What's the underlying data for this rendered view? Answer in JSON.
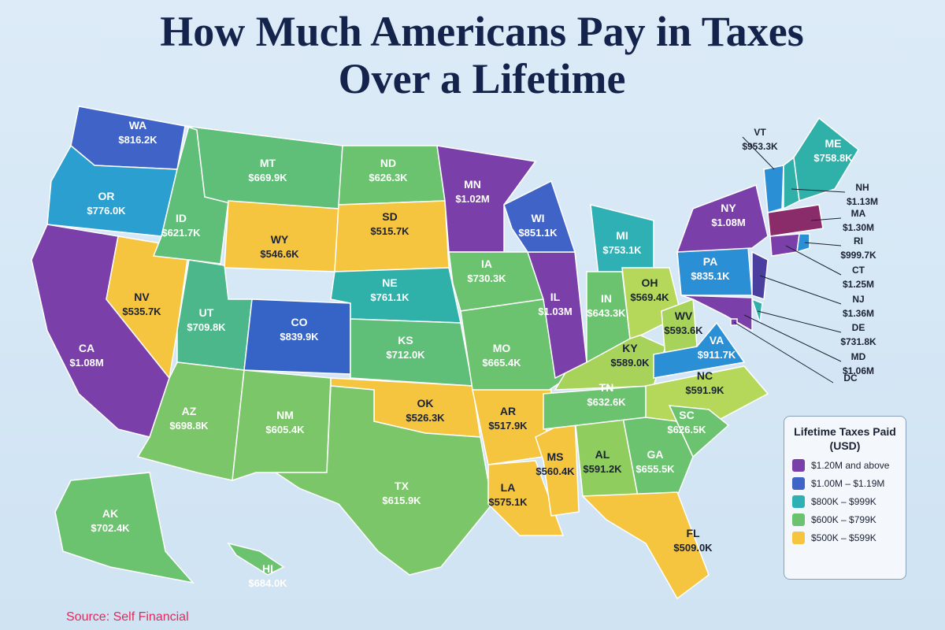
{
  "title_lines": [
    "How Much Americans Pay in Taxes",
    "Over a Lifetime"
  ],
  "states": [
    {
      "abbr": "WA",
      "value": "$816.2K",
      "color": "#3f63c7"
    },
    {
      "abbr": "OR",
      "value": "$776.0K",
      "color": "#2b9fd0"
    },
    {
      "abbr": "CA",
      "value": "$1.08M",
      "color": "#7a3fa8"
    },
    {
      "abbr": "NV",
      "value": "$535.7K",
      "color": "#f5c53f"
    },
    {
      "abbr": "ID",
      "value": "$621.7K",
      "color": "#5fbf78"
    },
    {
      "abbr": "MT",
      "value": "$669.9K",
      "color": "#5fbf78"
    },
    {
      "abbr": "WY",
      "value": "$546.6K",
      "color": "#f5c53f"
    },
    {
      "abbr": "UT",
      "value": "$709.8K",
      "color": "#4cb78a"
    },
    {
      "abbr": "CO",
      "value": "$839.9K",
      "color": "#3563c6"
    },
    {
      "abbr": "AZ",
      "value": "$698.8K",
      "color": "#7cc66a"
    },
    {
      "abbr": "NM",
      "value": "$605.4K",
      "color": "#7cc66a"
    },
    {
      "abbr": "ND",
      "value": "$626.3K",
      "color": "#6cc36f"
    },
    {
      "abbr": "SD",
      "value": "$515.7K",
      "color": "#f5c53f"
    },
    {
      "abbr": "NE",
      "value": "$761.1K",
      "color": "#2fb0a8"
    },
    {
      "abbr": "KS",
      "value": "$712.0K",
      "color": "#5fbf78"
    },
    {
      "abbr": "OK",
      "value": "$526.3K",
      "color": "#f5c53f"
    },
    {
      "abbr": "TX",
      "value": "$615.9K",
      "color": "#7cc66a"
    },
    {
      "abbr": "MN",
      "value": "$1.02M",
      "color": "#7a3fa8"
    },
    {
      "abbr": "IA",
      "value": "$730.3K",
      "color": "#6cc36f"
    },
    {
      "abbr": "MO",
      "value": "$665.4K",
      "color": "#6cc36f"
    },
    {
      "abbr": "AR",
      "value": "$517.9K",
      "color": "#f5c53f"
    },
    {
      "abbr": "LA",
      "value": "$575.1K",
      "color": "#f5c53f"
    },
    {
      "abbr": "MS",
      "value": "$560.4K",
      "color": "#f5c53f"
    },
    {
      "abbr": "AL",
      "value": "$591.2K",
      "color": "#8fcd5e"
    },
    {
      "abbr": "GA",
      "value": "$655.5K",
      "color": "#6cc36f"
    },
    {
      "abbr": "FL",
      "value": "$509.0K",
      "color": "#f5c53f"
    },
    {
      "abbr": "TN",
      "value": "$632.6K",
      "color": "#6cc36f"
    },
    {
      "abbr": "KY",
      "value": "$589.0K",
      "color": "#a7d35a"
    },
    {
      "abbr": "IL",
      "value": "$1.03M",
      "color": "#7a3fa8"
    },
    {
      "abbr": "WI",
      "value": "$851.1K",
      "color": "#3f63c7"
    },
    {
      "abbr": "MI",
      "value": "$753.1K",
      "color": "#2fb0b5"
    },
    {
      "abbr": "IN",
      "value": "$643.3K",
      "color": "#6cc36f"
    },
    {
      "abbr": "OH",
      "value": "$569.4K",
      "color": "#b5d75a"
    },
    {
      "abbr": "WV",
      "value": "$593.6K",
      "color": "#a7d35a"
    },
    {
      "abbr": "VA",
      "value": "$911.7K",
      "color": "#2b8fd6"
    },
    {
      "abbr": "NC",
      "value": "$591.9K",
      "color": "#b5d75a"
    },
    {
      "abbr": "SC",
      "value": "$626.5K",
      "color": "#6cc36f"
    },
    {
      "abbr": "PA",
      "value": "$835.1K",
      "color": "#2b8fd6"
    },
    {
      "abbr": "NY",
      "value": "$1.08M",
      "color": "#7a3fa8"
    },
    {
      "abbr": "NJ",
      "value": "$1.36M",
      "color": "#4a3f9e"
    },
    {
      "abbr": "DE",
      "value": "$731.8K",
      "color": "#2fb0a8"
    },
    {
      "abbr": "MD",
      "value": "$1.06M",
      "color": "#7a3fa8"
    },
    {
      "abbr": "DC",
      "color": "#7a3fa8"
    },
    {
      "abbr": "VT",
      "value": "$953.3K",
      "color": "#2b8fd6"
    },
    {
      "abbr": "NH",
      "value": "$1.13M",
      "color": "#2fb0a8"
    },
    {
      "abbr": "ME",
      "value": "$758.8K",
      "color": "#2fb0a8"
    },
    {
      "abbr": "MA",
      "value": "$1.30M",
      "color": "#8a2b6a"
    },
    {
      "abbr": "CT",
      "value": "$1.25M",
      "color": "#7a3fa8"
    },
    {
      "abbr": "RI",
      "value": "$999.7K",
      "color": "#2b8fd6"
    },
    {
      "abbr": "AK",
      "value": "$702.4K",
      "color": "#6cc36f"
    },
    {
      "abbr": "HI",
      "value": "$684.0K",
      "color": "#6cc36f"
    }
  ],
  "legend": {
    "title": "Lifetime Taxes Paid (USD)",
    "items": [
      {
        "label": "$1.20M and above",
        "color": "#7a3fa8"
      },
      {
        "label": "$1.00M – $1.19M",
        "color": "#3f63c7"
      },
      {
        "label": "$800K – $999K",
        "color": "#2fb0b5"
      },
      {
        "label": "$600K – $799K",
        "color": "#6cc36f"
      },
      {
        "label": "$500K – $599K",
        "color": "#f5c53f"
      }
    ]
  },
  "source": "Source: Self Financial"
}
